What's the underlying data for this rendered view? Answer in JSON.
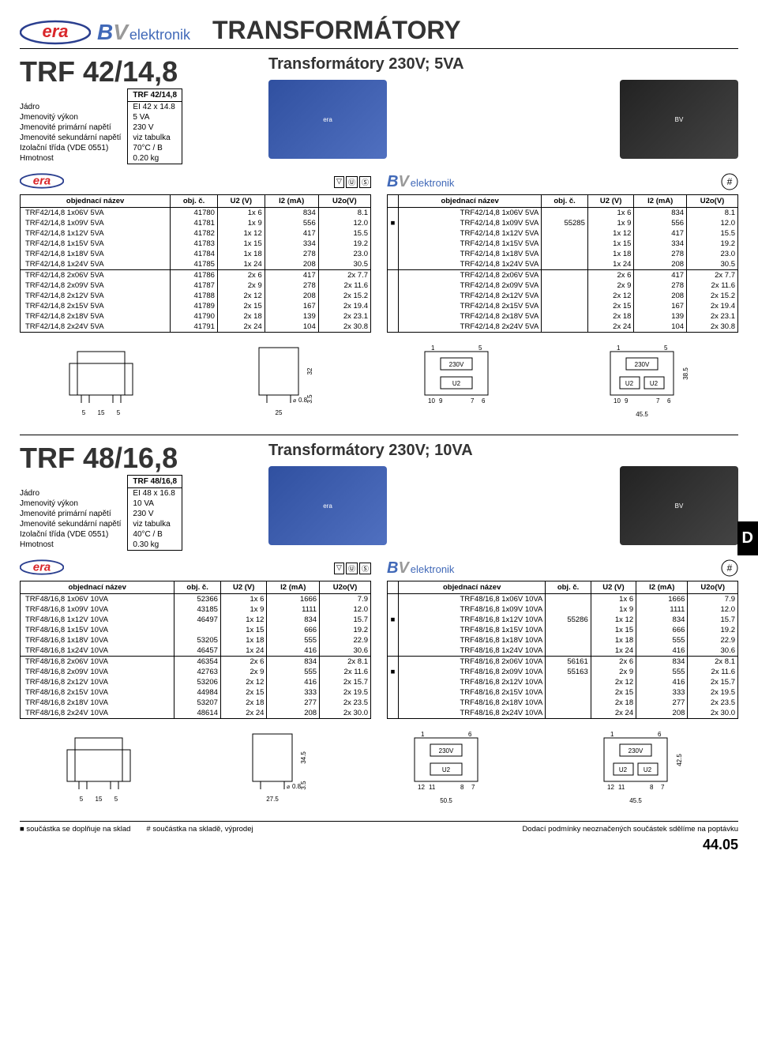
{
  "page_title": "TRANSFORMÁTORY",
  "brand_bv": "elektronik",
  "section1": {
    "model": "TRF 42/14,8",
    "subtitle": "Transformátory 230V; 5VA",
    "spec_header": "TRF 42/14,8",
    "specs": [
      [
        "Jádro",
        "EI 42 x 14.8"
      ],
      [
        "Jmenovitý výkon",
        "5 VA"
      ],
      [
        "Jmenovité primární napětí",
        "230 V"
      ],
      [
        "Jmenovité sekundární napětí",
        "viz tabulka"
      ],
      [
        "Izolační třída (VDE 0551)",
        "70°C / B"
      ],
      [
        "Hmotnost",
        "0.20 kg"
      ]
    ],
    "t_headers": [
      "objednací název",
      "obj. č.",
      "U2 (V)",
      "I2 (mA)",
      "U2o(V)"
    ],
    "left_rows_a": [
      [
        "TRF42/14,8 1x06V  5VA",
        "41780",
        "1x  6",
        "834",
        "8.1"
      ],
      [
        "TRF42/14,8 1x09V  5VA",
        "41781",
        "1x  9",
        "556",
        "12.0"
      ],
      [
        "TRF42/14,8 1x12V  5VA",
        "41782",
        "1x 12",
        "417",
        "15.5"
      ],
      [
        "TRF42/14,8 1x15V  5VA",
        "41783",
        "1x 15",
        "334",
        "19.2"
      ],
      [
        "TRF42/14,8 1x18V  5VA",
        "41784",
        "1x 18",
        "278",
        "23.0"
      ],
      [
        "TRF42/14,8 1x24V  5VA",
        "41785",
        "1x 24",
        "208",
        "30.5"
      ]
    ],
    "left_rows_b": [
      [
        "TRF42/14,8 2x06V  5VA",
        "41786",
        "2x  6",
        "417",
        "2x  7.7"
      ],
      [
        "TRF42/14,8 2x09V  5VA",
        "41787",
        "2x  9",
        "278",
        "2x 11.6"
      ],
      [
        "TRF42/14,8 2x12V  5VA",
        "41788",
        "2x 12",
        "208",
        "2x 15.2"
      ],
      [
        "TRF42/14,8 2x15V  5VA",
        "41789",
        "2x 15",
        "167",
        "2x 19.4"
      ],
      [
        "TRF42/14,8 2x18V  5VA",
        "41790",
        "2x 18",
        "139",
        "2x 23.1"
      ],
      [
        "TRF42/14,8 2x24V  5VA",
        "41791",
        "2x 24",
        "104",
        "2x 30.8"
      ]
    ],
    "right_rows_a": [
      [
        "",
        "TRF42/14,8 1x06V  5VA",
        "",
        "1x  6",
        "834",
        "8.1"
      ],
      [
        "■",
        "TRF42/14,8 1x09V  5VA",
        "55285",
        "1x  9",
        "556",
        "12.0"
      ],
      [
        "",
        "TRF42/14,8 1x12V  5VA",
        "",
        "1x 12",
        "417",
        "15.5"
      ],
      [
        "",
        "TRF42/14,8 1x15V  5VA",
        "",
        "1x 15",
        "334",
        "19.2"
      ],
      [
        "",
        "TRF42/14,8 1x18V  5VA",
        "",
        "1x 18",
        "278",
        "23.0"
      ],
      [
        "",
        "TRF42/14,8 1x24V  5VA",
        "",
        "1x 24",
        "208",
        "30.5"
      ]
    ],
    "right_rows_b": [
      [
        "",
        "TRF42/14,8 2x06V  5VA",
        "",
        "2x  6",
        "417",
        "2x  7.7"
      ],
      [
        "",
        "TRF42/14,8 2x09V  5VA",
        "",
        "2x  9",
        "278",
        "2x 11.6"
      ],
      [
        "",
        "TRF42/14,8 2x12V  5VA",
        "",
        "2x 12",
        "208",
        "2x 15.2"
      ],
      [
        "",
        "TRF42/14,8 2x15V  5VA",
        "",
        "2x 15",
        "167",
        "2x 19.4"
      ],
      [
        "",
        "TRF42/14,8 2x18V  5VA",
        "",
        "2x 18",
        "139",
        "2x 23.1"
      ],
      [
        "",
        "TRF42/14,8 2x24V  5VA",
        "",
        "2x 24",
        "104",
        "2x 30.8"
      ]
    ],
    "dims": {
      "a1": "5",
      "a2": "15",
      "a3": "5",
      "b1": "0.8",
      "b2": "25",
      "c1": "32",
      "c2": "3.5",
      "d1": "45.5",
      "d2": "38.5",
      "pin1": "230V",
      "pin2": "U2",
      "p1": "1",
      "p2": "5",
      "p3": "10",
      "p4": "9",
      "p5": "7",
      "p6": "6"
    }
  },
  "section2": {
    "model": "TRF 48/16,8",
    "subtitle": "Transformátory 230V; 10VA",
    "spec_header": "TRF 48/16,8",
    "specs": [
      [
        "Jádro",
        "EI 48 x 16.8"
      ],
      [
        "Jmenovitý výkon",
        "10 VA"
      ],
      [
        "Jmenovité primární napětí",
        "230 V"
      ],
      [
        "Jmenovité sekundární napětí",
        "viz tabulka"
      ],
      [
        "Izolační třída (VDE 0551)",
        "40°C / B"
      ],
      [
        "Hmotnost",
        "0.30 kg"
      ]
    ],
    "t_headers": [
      "objednací název",
      "obj. č.",
      "U2 (V)",
      "I2 (mA)",
      "U2o(V)"
    ],
    "left_rows_a": [
      [
        "TRF48/16,8 1x06V 10VA",
        "52366",
        "1x  6",
        "1666",
        "7.9"
      ],
      [
        "TRF48/16,8 1x09V 10VA",
        "43185",
        "1x  9",
        "1111",
        "12.0"
      ],
      [
        "TRF48/16,8 1x12V 10VA",
        "46497",
        "1x 12",
        "834",
        "15.7"
      ],
      [
        "TRF48/16,8 1x15V 10VA",
        "",
        "1x 15",
        "666",
        "19.2"
      ],
      [
        "TRF48/16,8 1x18V 10VA",
        "53205",
        "1x 18",
        "555",
        "22.9"
      ],
      [
        "TRF48/16,8 1x24V 10VA",
        "46457",
        "1x 24",
        "416",
        "30.6"
      ]
    ],
    "left_rows_b": [
      [
        "TRF48/16,8 2x06V 10VA",
        "46354",
        "2x  6",
        "834",
        "2x  8.1"
      ],
      [
        "TRF48/16,8 2x09V 10VA",
        "42763",
        "2x  9",
        "555",
        "2x 11.6"
      ],
      [
        "TRF48/16,8 2x12V 10VA",
        "53206",
        "2x 12",
        "416",
        "2x 15.7"
      ],
      [
        "TRF48/16,8 2x15V 10VA",
        "44984",
        "2x 15",
        "333",
        "2x 19.5"
      ],
      [
        "TRF48/16,8 2x18V 10VA",
        "53207",
        "2x 18",
        "277",
        "2x 23.5"
      ],
      [
        "TRF48/16,8 2x24V 10VA",
        "48614",
        "2x 24",
        "208",
        "2x 30.0"
      ]
    ],
    "right_rows_a": [
      [
        "",
        "TRF48/16,8 1x06V 10VA",
        "",
        "1x  6",
        "1666",
        "7.9"
      ],
      [
        "",
        "TRF48/16,8 1x09V 10VA",
        "",
        "1x  9",
        "1111",
        "12.0"
      ],
      [
        "■",
        "TRF48/16,8 1x12V 10VA",
        "55286",
        "1x 12",
        "834",
        "15.7"
      ],
      [
        "",
        "TRF48/16,8 1x15V 10VA",
        "",
        "1x 15",
        "666",
        "19.2"
      ],
      [
        "",
        "TRF48/16,8 1x18V 10VA",
        "",
        "1x 18",
        "555",
        "22.9"
      ],
      [
        "",
        "TRF48/16,8 1x24V 10VA",
        "",
        "1x 24",
        "416",
        "30.6"
      ]
    ],
    "right_rows_b": [
      [
        "",
        "TRF48/16,8 2x06V 10VA",
        "56161",
        "2x  6",
        "834",
        "2x  8.1"
      ],
      [
        "■",
        "TRF48/16,8 2x09V 10VA",
        "55163",
        "2x  9",
        "555",
        "2x 11.6"
      ],
      [
        "",
        "TRF48/16,8 2x12V 10VA",
        "",
        "2x 12",
        "416",
        "2x 15.7"
      ],
      [
        "",
        "TRF48/16,8 2x15V 10VA",
        "",
        "2x 15",
        "333",
        "2x 19.5"
      ],
      [
        "",
        "TRF48/16,8 2x18V 10VA",
        "",
        "2x 18",
        "277",
        "2x 23.5"
      ],
      [
        "",
        "TRF48/16,8 2x24V 10VA",
        "",
        "2x 24",
        "208",
        "2x 30.0"
      ]
    ],
    "dims": {
      "a1": "5",
      "a2": "15",
      "a3": "5",
      "b1": "0.8",
      "b2": "27.5",
      "c1": "34.5",
      "c2": "3.5",
      "d1": "50.5",
      "d2": "45.5",
      "d3": "42.5",
      "pin1": "230V",
      "pin2": "U2",
      "p1": "1",
      "p2": "6",
      "p3": "12",
      "p4": "11",
      "p5": "8",
      "p6": "7"
    }
  },
  "side_tab": "D",
  "footer": {
    "note1": "■   součástka se doplňuje na sklad",
    "note2": "#   součástka na skladě, výprodej",
    "note3": "Dodací podmínky  neoznačených součástek sdělíme na poptávku",
    "page": "44.05"
  },
  "colors": {
    "era_red": "#d9262a",
    "era_blue": "#2b3f8f",
    "bv_blue": "#4169b8",
    "bv_gray": "#999999"
  }
}
